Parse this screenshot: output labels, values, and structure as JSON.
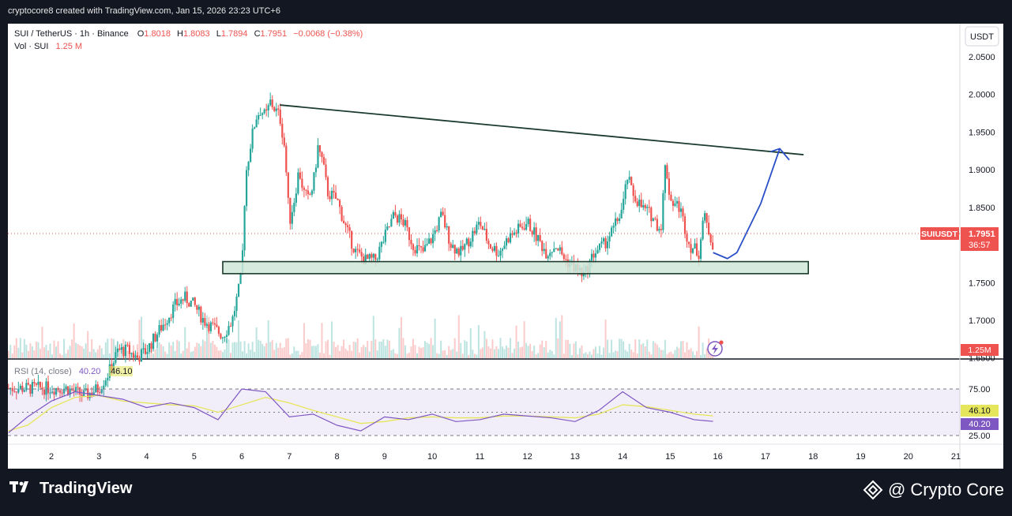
{
  "header": {
    "attribution": "cryptocore8 created with TradingView.com, Jan 15, 2026 23:23 UTC+6"
  },
  "legend": {
    "symbol": "SUI / TetherUS · 1h · Binance",
    "open_label": "O",
    "open": "1.8018",
    "high_label": "H",
    "high": "1.8083",
    "low_label": "L",
    "low": "1.7894",
    "close_label": "C",
    "close": "1.7951",
    "change": "−0.0068 (−0.38%)",
    "vol_label": "Vol · SUI",
    "vol": "1.25 M"
  },
  "price_axis": {
    "currency_button": "USDT",
    "ticks": [
      "2.0500",
      "2.0000",
      "1.9500",
      "1.9000",
      "1.8500",
      "1.7500",
      "1.7000",
      "1.6500"
    ],
    "last_symbol": "SUIUSDT",
    "last_price": "1.7951",
    "countdown": "36:57",
    "volume_tag": "1.25M"
  },
  "rsi": {
    "label": "RSI (14, close)",
    "rsi_value": "40.20",
    "ma_value": "46.10",
    "ticks": [
      "75.00",
      "25.00"
    ],
    "value_tag": "40.20",
    "ma_tag": "46.10"
  },
  "time_axis": {
    "labels": [
      "2",
      "3",
      "4",
      "5",
      "6",
      "7",
      "8",
      "9",
      "10",
      "11",
      "12",
      "13",
      "14",
      "15",
      "16",
      "17",
      "18",
      "19",
      "20",
      "21"
    ]
  },
  "colors": {
    "up": "#26a69a",
    "down": "#ef5350",
    "rsi": "#7e57c2",
    "rsi_ma": "#e6e65c",
    "projection": "#2b4fc7",
    "trendline": "#1b3b2d"
  },
  "footer": {
    "tradingview": "TradingView",
    "brand": "@ Crypto Core"
  },
  "chart_data": {
    "type": "candlestick",
    "title": "SUI / TetherUS · 1h · Binance",
    "x_unit": "day of January 2026",
    "ylim": [
      1.61,
      2.07
    ],
    "price_series": {
      "name": "SUIUSDT",
      "x": [
        1.1,
        1.5,
        1.9,
        2.3,
        2.7,
        3.0,
        3.2,
        3.4,
        3.6,
        3.8,
        4.0,
        4.2,
        4.4,
        4.6,
        4.8,
        5.0,
        5.2,
        5.4,
        5.6,
        5.8,
        6.0,
        6.05,
        6.1,
        6.2,
        6.3,
        6.4,
        6.5,
        6.6,
        6.7,
        6.8,
        6.9,
        7.0,
        7.1,
        7.2,
        7.3,
        7.4,
        7.5,
        7.6,
        7.7,
        7.8,
        8.0,
        8.2,
        8.4,
        8.6,
        8.8,
        9.0,
        9.2,
        9.4,
        9.6,
        9.8,
        10.0,
        10.2,
        10.4,
        10.6,
        10.8,
        11.0,
        11.2,
        11.4,
        11.6,
        11.8,
        12.0,
        12.2,
        12.4,
        12.6,
        12.8,
        13.0,
        13.2,
        13.4,
        13.6,
        13.8,
        14.0,
        14.1,
        14.2,
        14.3,
        14.4,
        14.6,
        14.8,
        14.9,
        15.0,
        15.2,
        15.4,
        15.6,
        15.7,
        15.8,
        15.9
      ],
      "close": [
        1.61,
        1.61,
        1.61,
        1.61,
        1.6,
        1.61,
        1.63,
        1.66,
        1.66,
        1.65,
        1.66,
        1.68,
        1.7,
        1.72,
        1.73,
        1.72,
        1.7,
        1.69,
        1.68,
        1.7,
        1.76,
        1.85,
        1.9,
        1.94,
        1.97,
        1.98,
        1.97,
        1.99,
        1.98,
        1.97,
        1.93,
        1.83,
        1.86,
        1.9,
        1.87,
        1.86,
        1.88,
        1.93,
        1.91,
        1.87,
        1.86,
        1.82,
        1.79,
        1.78,
        1.78,
        1.81,
        1.84,
        1.83,
        1.8,
        1.79,
        1.81,
        1.84,
        1.8,
        1.79,
        1.81,
        1.83,
        1.8,
        1.79,
        1.81,
        1.82,
        1.83,
        1.81,
        1.79,
        1.8,
        1.78,
        1.77,
        1.76,
        1.79,
        1.8,
        1.82,
        1.85,
        1.89,
        1.87,
        1.86,
        1.85,
        1.84,
        1.82,
        1.91,
        1.86,
        1.85,
        1.8,
        1.79,
        1.84,
        1.82,
        1.8
      ]
    },
    "volume_series": {
      "name": "Vol · SUI",
      "last": "1.25M"
    },
    "rsi_series": {
      "name": "RSI (14, close)",
      "ylim": [
        15,
        85
      ],
      "levels": [
        75,
        50,
        25
      ],
      "x": [
        1.1,
        1.5,
        2.0,
        2.5,
        3.0,
        3.5,
        4.0,
        4.5,
        5.0,
        5.5,
        6.0,
        6.5,
        7.0,
        7.5,
        8.0,
        8.5,
        9.0,
        9.5,
        10.0,
        10.5,
        11.0,
        11.5,
        12.0,
        12.5,
        13.0,
        13.5,
        14.0,
        14.5,
        15.0,
        15.5,
        15.9
      ],
      "rsi": [
        28,
        45,
        62,
        72,
        68,
        64,
        55,
        60,
        55,
        42,
        75,
        72,
        45,
        48,
        36,
        30,
        45,
        42,
        48,
        40,
        42,
        48,
        46,
        44,
        40,
        52,
        72,
        55,
        50,
        42,
        40.2
      ],
      "ma": [
        30,
        36,
        55,
        66,
        68,
        62,
        60,
        58,
        57,
        50,
        58,
        66,
        60,
        52,
        45,
        38,
        40,
        44,
        45,
        44,
        44,
        46,
        46,
        45,
        44,
        48,
        58,
        56,
        52,
        48,
        46.1
      ]
    },
    "annotations": {
      "trendline": {
        "x": [
          6.8,
          17.8
        ],
        "y": [
          1.986,
          1.92
        ]
      },
      "support_zone": {
        "x": [
          5.6,
          17.9
        ],
        "y": [
          1.762,
          1.778
        ]
      },
      "projection": {
        "x": [
          15.9,
          16.2,
          16.4,
          16.9,
          17.3,
          17.5
        ],
        "y": [
          1.79,
          1.782,
          1.79,
          1.855,
          1.928,
          1.913
        ]
      }
    }
  }
}
